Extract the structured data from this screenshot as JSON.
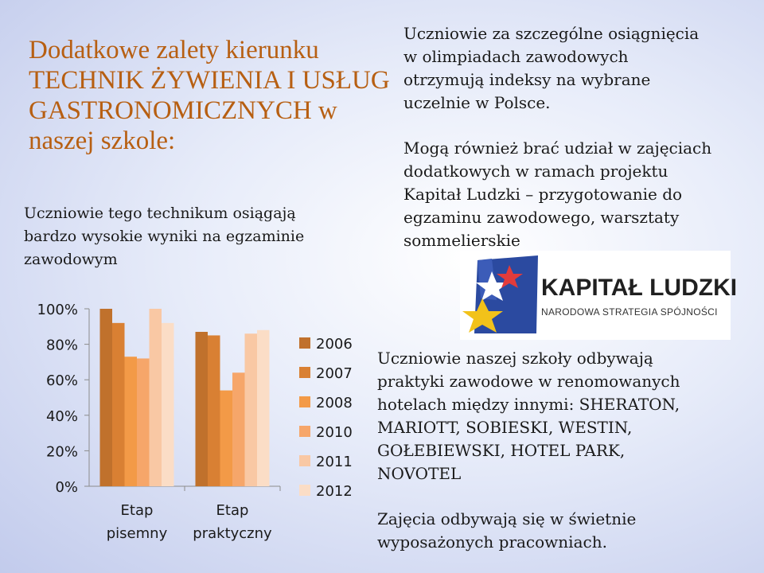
{
  "title": {
    "line1": "Dodatkowe zalety kierunku",
    "line2": "TECHNIK ŻYWIENIA I USŁUG",
    "line3": "GASTRONOMICZNYCH w",
    "line4": "naszej szkole:"
  },
  "left_text": {
    "line1": "Uczniowie tego technikum osiągają",
    "line2": "bardzo wysokie wyniki na egzaminie",
    "line3": "zawodowym"
  },
  "right_blocks": {
    "olympiad": [
      "Uczniowie za szczególne osiągnięcia",
      "w olimpiadach zawodowych",
      "otrzymują indeksy na wybrane",
      "uczelnie w Polsce."
    ],
    "projects": [
      "Mogą również brać udział w zajęciach",
      "dodatkowych w ramach projektu",
      "Kapitał Ludzki – przygotowanie do",
      "egzaminu zawodowego, warsztaty",
      "sommelierskie"
    ],
    "internships": [
      "Uczniowie naszej szkoły odbywają",
      "praktyki zawodowe w renomowanych",
      "hotelach między innymi: SHERATON,",
      "MARIOTT, SOBIESKI, WESTIN,",
      "GOŁEBIEWSKI, HOTEL PARK,",
      "NOVOTEL"
    ],
    "classes": [
      "Zajęcia odbywają się w świetnie",
      "wyposażonych pracowniach."
    ]
  },
  "logo": {
    "name": "KAPITAŁ LUDZKI",
    "subtitle": "NARODOWA STRATEGIA SPÓJNOŚCI",
    "icon": "eu-flag-star-icon"
  },
  "chart_data": {
    "type": "bar",
    "categories": [
      "Etap pisemny",
      "Etap praktyczny"
    ],
    "category_lines": [
      [
        "Etap",
        "pisemny"
      ],
      [
        "Etap",
        "praktyczny"
      ]
    ],
    "series": [
      {
        "name": "2006",
        "values": [
          100,
          87
        ],
        "color": "#c0712c"
      },
      {
        "name": "2007",
        "values": [
          92,
          85
        ],
        "color": "#d98033"
      },
      {
        "name": "2008",
        "values": [
          73,
          54
        ],
        "color": "#f39a47"
      },
      {
        "name": "2010",
        "values": [
          72,
          64
        ],
        "color": "#f6a66a"
      },
      {
        "name": "2011",
        "values": [
          100,
          86
        ],
        "color": "#f9c8a4"
      },
      {
        "name": "2012",
        "values": [
          92,
          88
        ],
        "color": "#fbddc6"
      }
    ],
    "ylim": [
      0,
      100
    ],
    "yticks": [
      "0%",
      "20%",
      "40%",
      "60%",
      "80%",
      "100%"
    ],
    "legend_position": "right",
    "grid": false
  }
}
